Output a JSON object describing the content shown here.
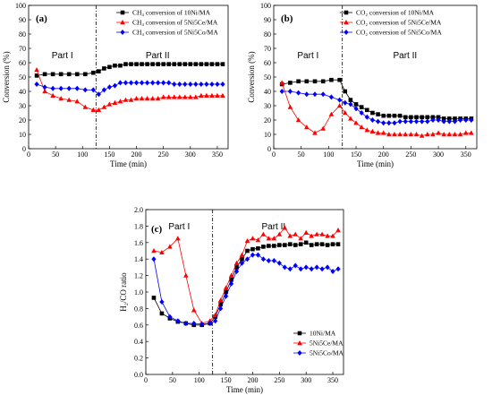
{
  "chart_data": [
    {
      "type": "line",
      "panel_label": "(a)",
      "xlabel": "Time  (min)",
      "ylabel": "Conversion (%)",
      "xlim": [
        0,
        370
      ],
      "ylim": [
        0,
        100
      ],
      "xticks": [
        0,
        50,
        100,
        150,
        200,
        250,
        300,
        350
      ],
      "yticks": [
        0,
        10,
        20,
        30,
        40,
        50,
        60,
        70,
        80,
        90,
        100
      ],
      "divider_x": 125,
      "part_labels": [
        "Part I",
        "Part II"
      ],
      "legend_position": "top-right",
      "series": [
        {
          "name": "CH₄ conversion of 10Ni/MA",
          "color": "#000000",
          "marker": "square",
          "x": [
            15,
            30,
            45,
            60,
            75,
            90,
            105,
            120,
            130,
            140,
            150,
            160,
            170,
            180,
            190,
            200,
            210,
            220,
            230,
            240,
            250,
            260,
            270,
            280,
            290,
            300,
            310,
            320,
            330,
            340,
            350,
            360
          ],
          "y": [
            51,
            52,
            52,
            52,
            52,
            52,
            52,
            53,
            54,
            56,
            57,
            58,
            58,
            59,
            59,
            59,
            59,
            59,
            59,
            59,
            59,
            59,
            59,
            59,
            59,
            59,
            59,
            59,
            59,
            59,
            59,
            59
          ]
        },
        {
          "name": "CH₄ conversion of 5Ni5Ce/MA",
          "color": "#ff0000",
          "marker": "triangle",
          "x": [
            15,
            30,
            45,
            60,
            75,
            90,
            105,
            120,
            130,
            140,
            150,
            160,
            170,
            180,
            190,
            200,
            210,
            220,
            230,
            240,
            250,
            260,
            270,
            280,
            290,
            300,
            310,
            320,
            330,
            340,
            350,
            360
          ],
          "y": [
            55,
            40,
            37,
            35,
            34,
            33,
            29,
            27,
            27,
            29,
            31,
            32,
            33,
            34,
            34,
            35,
            35,
            35,
            35,
            35,
            36,
            36,
            36,
            36,
            36,
            36,
            36,
            37,
            37,
            37,
            37,
            37
          ]
        },
        {
          "name": "CH₄ conversion of 5Ni5Co/MA",
          "color": "#0000ff",
          "marker": "diamond",
          "x": [
            15,
            30,
            45,
            60,
            75,
            90,
            105,
            120,
            130,
            140,
            150,
            160,
            170,
            180,
            190,
            200,
            210,
            220,
            230,
            240,
            250,
            260,
            270,
            280,
            290,
            300,
            310,
            320,
            330,
            340,
            350,
            360
          ],
          "y": [
            45,
            43,
            42,
            42,
            42,
            42,
            41,
            41,
            38,
            41,
            43,
            44,
            46,
            46,
            46,
            46,
            46,
            46,
            46,
            46,
            46,
            46,
            45,
            45,
            45,
            45,
            45,
            45,
            45,
            45,
            45,
            45
          ]
        }
      ]
    },
    {
      "type": "line",
      "panel_label": "(b)",
      "xlabel": "Time  (min)",
      "ylabel": "Conversion (%)",
      "xlim": [
        0,
        370
      ],
      "ylim": [
        0,
        100
      ],
      "xticks": [
        0,
        50,
        100,
        150,
        200,
        250,
        300,
        350
      ],
      "yticks": [
        0,
        10,
        20,
        30,
        40,
        50,
        60,
        70,
        80,
        90,
        100
      ],
      "divider_x": 125,
      "part_labels": [
        "Part I",
        "Part II"
      ],
      "legend_position": "top-right",
      "series": [
        {
          "name": "CO₂ conversion of 10Ni/MA",
          "color": "#000000",
          "marker": "square",
          "x": [
            15,
            30,
            45,
            60,
            75,
            90,
            105,
            120,
            130,
            140,
            150,
            160,
            170,
            180,
            190,
            200,
            210,
            220,
            230,
            240,
            250,
            260,
            270,
            280,
            290,
            300,
            310,
            320,
            330,
            340,
            350,
            360
          ],
          "y": [
            45,
            46,
            47,
            47,
            47,
            47,
            48,
            48,
            40,
            34,
            31,
            29,
            27,
            25,
            24,
            23,
            23,
            23,
            23,
            22,
            22,
            22,
            22,
            22,
            22,
            22,
            21,
            21,
            21,
            21,
            21,
            21
          ]
        },
        {
          "name": "CO₂ conversion of 5Ni5Ce/MA",
          "color": "#ff0000",
          "marker": "triangle",
          "x": [
            15,
            30,
            45,
            60,
            75,
            90,
            105,
            120,
            130,
            140,
            150,
            160,
            170,
            180,
            190,
            200,
            210,
            220,
            230,
            240,
            250,
            260,
            270,
            280,
            290,
            300,
            310,
            320,
            330,
            340,
            350,
            360
          ],
          "y": [
            46,
            29,
            20,
            15,
            11,
            14,
            24,
            30,
            25,
            21,
            18,
            15,
            13,
            12,
            11,
            11,
            10,
            10,
            10,
            10,
            10,
            10,
            9,
            10,
            10,
            11,
            10,
            10,
            10,
            10,
            11,
            11
          ]
        },
        {
          "name": "CO₂ conversion of 5Ni5Co/MA",
          "color": "#0000ff",
          "marker": "diamond",
          "x": [
            15,
            30,
            45,
            60,
            75,
            90,
            105,
            120,
            130,
            140,
            150,
            160,
            170,
            180,
            190,
            200,
            210,
            220,
            230,
            240,
            250,
            260,
            270,
            280,
            290,
            300,
            310,
            320,
            330,
            340,
            350,
            360
          ],
          "y": [
            40,
            40,
            39,
            38,
            38,
            38,
            36,
            34,
            32,
            31,
            28,
            25,
            22,
            20,
            19,
            18,
            18,
            18,
            19,
            19,
            19,
            19,
            19,
            19,
            20,
            20,
            19,
            19,
            19,
            20,
            20,
            20
          ]
        }
      ]
    },
    {
      "type": "line",
      "panel_label": "(c)",
      "xlabel": "Time  (min)",
      "ylabel": "H₂/CO ratio",
      "xlim": [
        0,
        370
      ],
      "ylim": [
        0.0,
        2.0
      ],
      "xticks": [
        0,
        50,
        100,
        150,
        200,
        250,
        300,
        350
      ],
      "yticks": [
        0.0,
        0.2,
        0.4,
        0.6,
        0.8,
        1.0,
        1.2,
        1.4,
        1.6,
        1.8,
        2.0
      ],
      "divider_x": 125,
      "part_labels": [
        "Part I",
        "Part II"
      ],
      "legend_position": "bottom-right",
      "series": [
        {
          "name": "10Ni/MA",
          "color": "#000000",
          "marker": "square",
          "x": [
            15,
            30,
            45,
            60,
            75,
            90,
            105,
            120,
            130,
            140,
            150,
            160,
            170,
            180,
            190,
            200,
            210,
            220,
            230,
            240,
            250,
            260,
            270,
            280,
            290,
            300,
            310,
            320,
            330,
            340,
            350,
            360
          ],
          "y": [
            0.93,
            0.74,
            0.68,
            0.64,
            0.62,
            0.6,
            0.6,
            0.62,
            0.7,
            0.85,
            1.0,
            1.15,
            1.3,
            1.4,
            1.5,
            1.52,
            1.53,
            1.55,
            1.56,
            1.56,
            1.57,
            1.57,
            1.58,
            1.57,
            1.58,
            1.6,
            1.57,
            1.58,
            1.58,
            1.57,
            1.58,
            1.58
          ]
        },
        {
          "name": "5Ni5Ce/MA",
          "color": "#ff0000",
          "marker": "triangle",
          "x": [
            15,
            30,
            45,
            60,
            75,
            90,
            105,
            120,
            130,
            140,
            150,
            160,
            170,
            180,
            190,
            200,
            210,
            220,
            230,
            240,
            250,
            260,
            270,
            280,
            290,
            300,
            310,
            320,
            330,
            340,
            350,
            360
          ],
          "y": [
            1.5,
            1.48,
            1.55,
            1.65,
            1.2,
            0.78,
            0.62,
            0.65,
            0.72,
            0.9,
            1.05,
            1.2,
            1.35,
            1.45,
            1.62,
            1.65,
            1.63,
            1.7,
            1.65,
            1.65,
            1.7,
            1.78,
            1.68,
            1.7,
            1.65,
            1.72,
            1.68,
            1.7,
            1.7,
            1.68,
            1.68,
            1.75
          ]
        },
        {
          "name": "5Ni5Co/MA",
          "color": "#0000ff",
          "marker": "diamond",
          "x": [
            15,
            30,
            45,
            60,
            75,
            90,
            105,
            120,
            130,
            140,
            150,
            160,
            170,
            180,
            190,
            200,
            210,
            220,
            230,
            240,
            250,
            260,
            270,
            280,
            290,
            300,
            310,
            320,
            330,
            340,
            350,
            360
          ],
          "y": [
            1.4,
            0.88,
            0.7,
            0.65,
            0.62,
            0.62,
            0.61,
            0.62,
            0.65,
            0.8,
            0.95,
            1.1,
            1.25,
            1.35,
            1.4,
            1.45,
            1.45,
            1.4,
            1.38,
            1.38,
            1.35,
            1.3,
            1.28,
            1.32,
            1.28,
            1.3,
            1.28,
            1.3,
            1.28,
            1.3,
            1.25,
            1.28
          ]
        }
      ]
    }
  ]
}
